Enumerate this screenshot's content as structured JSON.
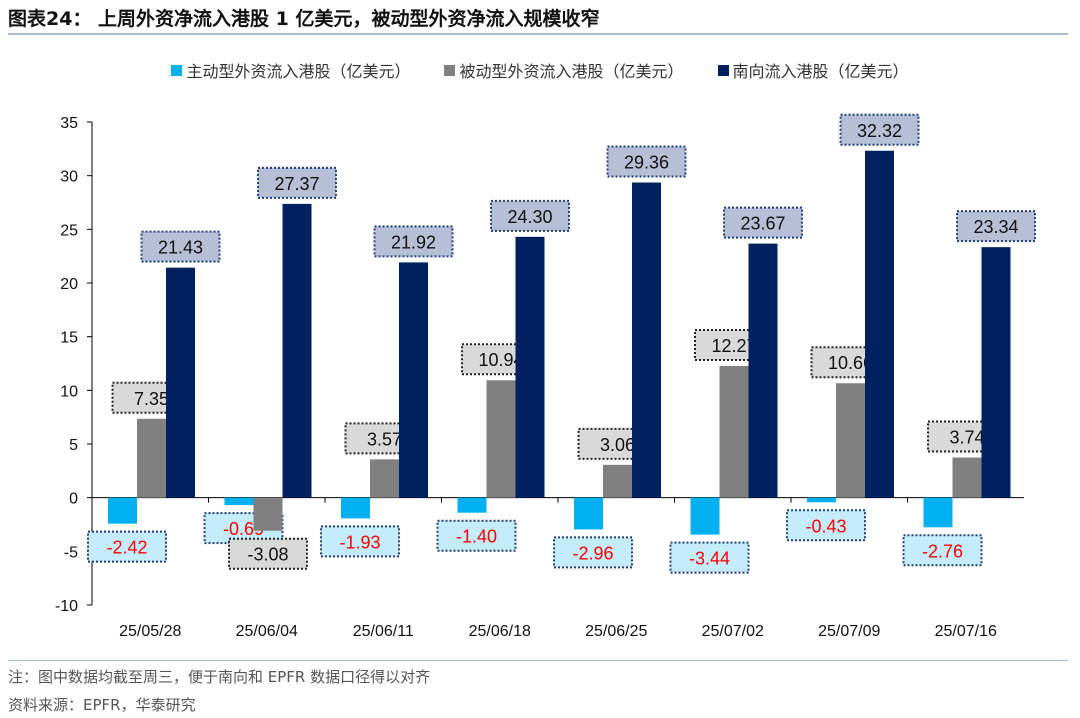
{
  "title": "图表24： 上周外资净流入港股 1 亿美元，被动型外资净流入规模收窄",
  "note": "注：图中数据均截至周三，便于南向和 EPFR 数据口径得以对齐",
  "source": "资料来源：EPFR，华泰研究",
  "chart_data": {
    "type": "bar",
    "categories": [
      "25/05/28",
      "25/06/04",
      "25/06/11",
      "25/06/18",
      "25/06/25",
      "25/07/02",
      "25/07/09",
      "25/07/16"
    ],
    "series": [
      {
        "name": "主动型外资流入港股（亿美元）",
        "color": "#00b0f0",
        "label_bg": "#c5ecfb",
        "label_border": "#1f3f7a",
        "label_color": "#ff0000",
        "values": [
          -2.42,
          -0.69,
          -1.93,
          -1.4,
          -2.96,
          -3.44,
          -0.43,
          -2.76
        ]
      },
      {
        "name": "被动型外资流入港股（亿美元）",
        "color": "#808080",
        "label_bg": "#d9d9d9",
        "label_border": "#222222",
        "label_color": "#111111",
        "values": [
          7.35,
          -3.08,
          3.57,
          10.94,
          3.06,
          12.27,
          10.66,
          3.74
        ]
      },
      {
        "name": "南向流入港股（亿美元）",
        "color": "#002060",
        "label_bg": "#b6bfd6",
        "label_border": "#1f3f7a",
        "label_color": "#111111",
        "values": [
          21.43,
          27.37,
          21.92,
          24.3,
          29.36,
          23.67,
          32.32,
          23.34
        ]
      }
    ],
    "ylim": [
      -10,
      35
    ],
    "yticks": [
      -10,
      -5,
      0,
      5,
      10,
      15,
      20,
      25,
      30,
      35
    ],
    "grid": false,
    "legend": "top"
  }
}
